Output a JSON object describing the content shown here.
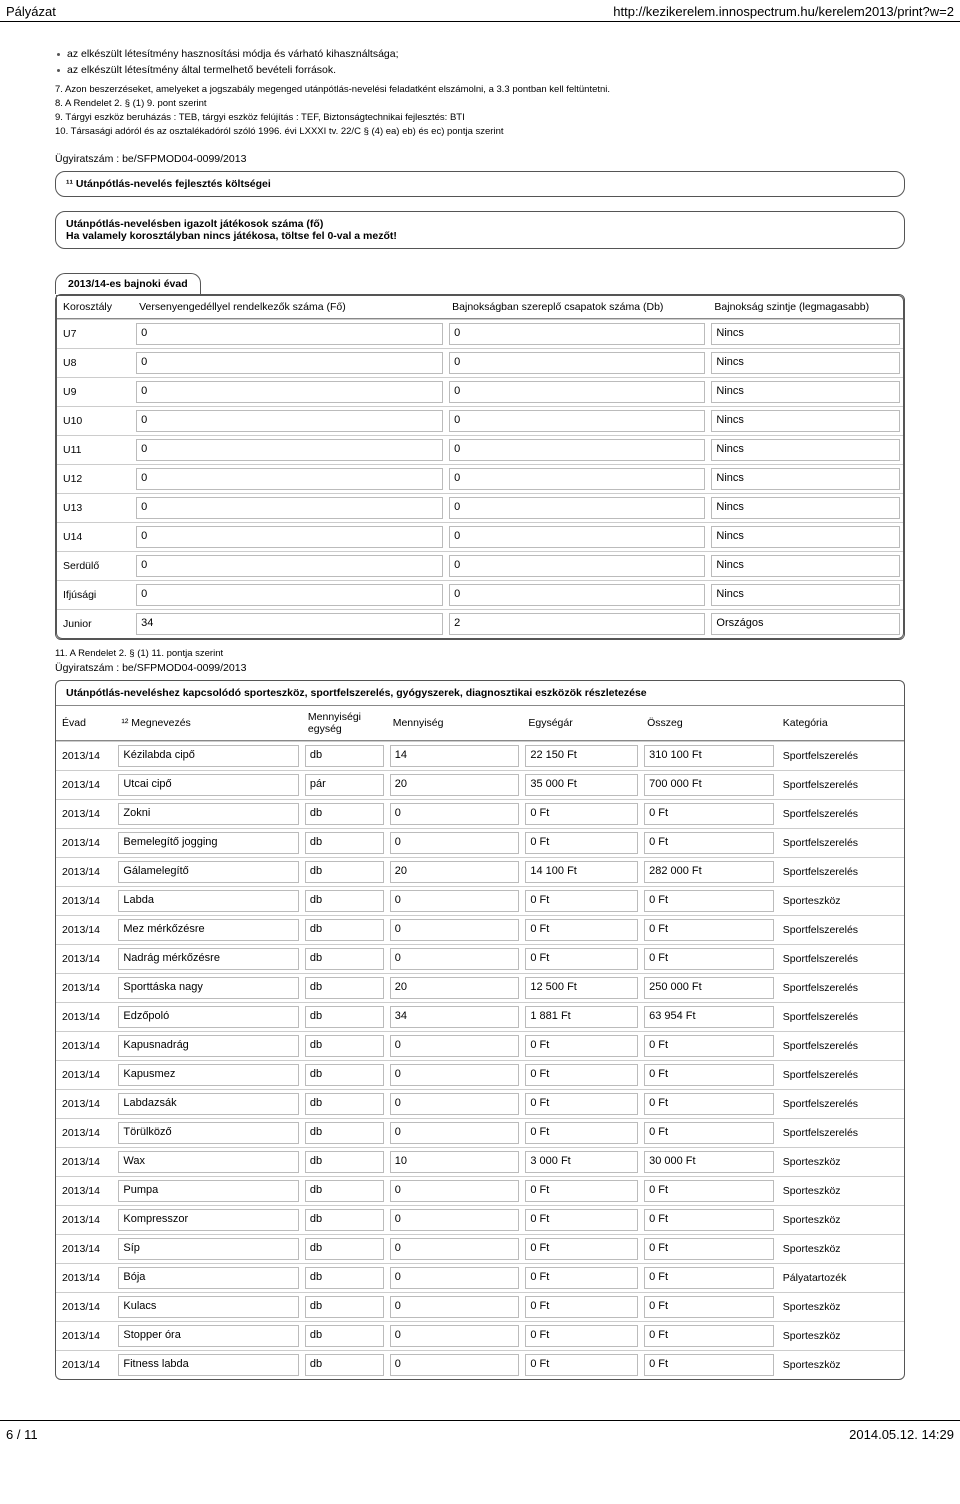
{
  "header": {
    "left": "Pályázat",
    "right": "http://kezikerelem.innospectrum.hu/kerelem2013/print?w=2"
  },
  "bullets": [
    "az elkészült létesítmény hasznosítási módja és várható kihasználtsága;",
    "az elkészült létesítmény által termelhető bevételi források."
  ],
  "notes": [
    "7. Azon beszerzéseket, amelyeket a jogszabály megenged utánpótlás-nevelési feladatként elszámolni, a 3.3 pontban kell feltüntetni.",
    "8. A Rendelet 2. § (1) 9. pont szerint",
    "9. Tárgyi eszköz beruházás : TEB, tárgyi eszköz felújítás : TEF, Biztonságtechnikai fejlesztés: BTI",
    "10. Társasági adóról és az osztalékadóról szóló 1996. évi LXXXI tv. 22/C § (4) ea) eb) és ec) pontja szerint"
  ],
  "case1": "Ügyiratszám : be/SFPMOD04-0099/2013",
  "box_title": "¹¹ Utánpótlás-nevelés fejlesztés költségei",
  "box_sub_line1": "Utánpótlás-nevelésben igazolt játékosok száma (fő)",
  "box_sub_line2": "Ha valamely korosztályban nincs játékosa, töltse fel 0-val a mezőt!",
  "season_label": "2013/14-es bajnoki évad",
  "table1": {
    "headers": [
      "Korosztály",
      "Versenyengedéllyel rendelkezők száma (Fő)",
      "Bajnokságban szereplő csapatok száma (Db)",
      "Bajnokság szintje (legmagasabb)"
    ],
    "widths": [
      "9%",
      "37%",
      "31%",
      "23%"
    ],
    "rows": [
      [
        "U7",
        "0",
        "0",
        "Nincs"
      ],
      [
        "U8",
        "0",
        "0",
        "Nincs"
      ],
      [
        "U9",
        "0",
        "0",
        "Nincs"
      ],
      [
        "U10",
        "0",
        "0",
        "Nincs"
      ],
      [
        "U11",
        "0",
        "0",
        "Nincs"
      ],
      [
        "U12",
        "0",
        "0",
        "Nincs"
      ],
      [
        "U13",
        "0",
        "0",
        "Nincs"
      ],
      [
        "U14",
        "0",
        "0",
        "Nincs"
      ],
      [
        "Serdülő",
        "0",
        "0",
        "Nincs"
      ],
      [
        "Ifjúsági",
        "0",
        "0",
        "Nincs"
      ],
      [
        "Junior",
        "34",
        "2",
        "Országos"
      ]
    ]
  },
  "note11": "11. A Rendelet 2. § (1) 11. pontja szerint",
  "case2": "Ügyiratszám : be/SFPMOD04-0099/2013",
  "table2": {
    "title": "Utánpótlás-neveléshez kapcsolódó sporteszköz, sportfelszerelés, gyógyszerek, diagnosztikai eszközök részletezése",
    "headers": [
      "Évad",
      "¹² Megnevezés",
      "Mennyiségi egység",
      "Mennyiség",
      "Egységár",
      "Összeg",
      "Kategória"
    ],
    "widths": [
      "7%",
      "22%",
      "10%",
      "16%",
      "14%",
      "16%",
      "15%"
    ],
    "rows": [
      [
        "2013/14",
        "Kézilabda cipő",
        "db",
        "14",
        "22 150 Ft",
        "310 100  Ft",
        "Sportfelszerelés"
      ],
      [
        "2013/14",
        "Utcai cipő",
        "pár",
        "20",
        "35 000 Ft",
        "700 000  Ft",
        "Sportfelszerelés"
      ],
      [
        "2013/14",
        "Zokni",
        "db",
        "0",
        "0 Ft",
        "0  Ft",
        "Sportfelszerelés"
      ],
      [
        "2013/14",
        "Bemelegítő jogging",
        "db",
        "0",
        "0 Ft",
        "0  Ft",
        "Sportfelszerelés"
      ],
      [
        "2013/14",
        "Gálamelegítő",
        "db",
        "20",
        "14 100 Ft",
        "282 000  Ft",
        "Sportfelszerelés"
      ],
      [
        "2013/14",
        "Labda",
        "db",
        "0",
        "0 Ft",
        "0  Ft",
        "Sporteszköz"
      ],
      [
        "2013/14",
        "Mez mérkőzésre",
        "db",
        "0",
        "0 Ft",
        "0  Ft",
        "Sportfelszerelés"
      ],
      [
        "2013/14",
        "Nadrág mérkőzésre",
        "db",
        "0",
        "0 Ft",
        "0  Ft",
        "Sportfelszerelés"
      ],
      [
        "2013/14",
        "Sporttáska nagy",
        "db",
        "20",
        "12 500 Ft",
        "250 000  Ft",
        "Sportfelszerelés"
      ],
      [
        "2013/14",
        "Edzőpoló",
        "db",
        "34",
        "1 881 Ft",
        "63 954  Ft",
        "Sportfelszerelés"
      ],
      [
        "2013/14",
        "Kapusnadrág",
        "db",
        "0",
        "0 Ft",
        "0  Ft",
        "Sportfelszerelés"
      ],
      [
        "2013/14",
        "Kapusmez",
        "db",
        "0",
        "0 Ft",
        "0  Ft",
        "Sportfelszerelés"
      ],
      [
        "2013/14",
        "Labdazsák",
        "db",
        "0",
        "0 Ft",
        "0  Ft",
        "Sportfelszerelés"
      ],
      [
        "2013/14",
        "Törülköző",
        "db",
        "0",
        "0 Ft",
        "0  Ft",
        "Sportfelszerelés"
      ],
      [
        "2013/14",
        "Wax",
        "db",
        "10",
        "3 000 Ft",
        "30 000  Ft",
        "Sporteszköz"
      ],
      [
        "2013/14",
        "Pumpa",
        "db",
        "0",
        "0 Ft",
        "0  Ft",
        "Sporteszköz"
      ],
      [
        "2013/14",
        "Kompresszor",
        "db",
        "0",
        "0 Ft",
        "0  Ft",
        "Sporteszköz"
      ],
      [
        "2013/14",
        "Síp",
        "db",
        "0",
        "0 Ft",
        "0  Ft",
        "Sporteszköz"
      ],
      [
        "2013/14",
        "Bója",
        "db",
        "0",
        "0 Ft",
        "0  Ft",
        "Pályatartozék"
      ],
      [
        "2013/14",
        "Kulacs",
        "db",
        "0",
        "0 Ft",
        "0  Ft",
        "Sporteszköz"
      ],
      [
        "2013/14",
        "Stopper óra",
        "db",
        "0",
        "0 Ft",
        "0  Ft",
        "Sporteszköz"
      ],
      [
        "2013/14",
        "Fitness labda",
        "db",
        "0",
        "0 Ft",
        "0  Ft",
        "Sporteszköz"
      ]
    ]
  },
  "footer": {
    "left": "6 / 11",
    "right": "2014.05.12. 14:29"
  }
}
